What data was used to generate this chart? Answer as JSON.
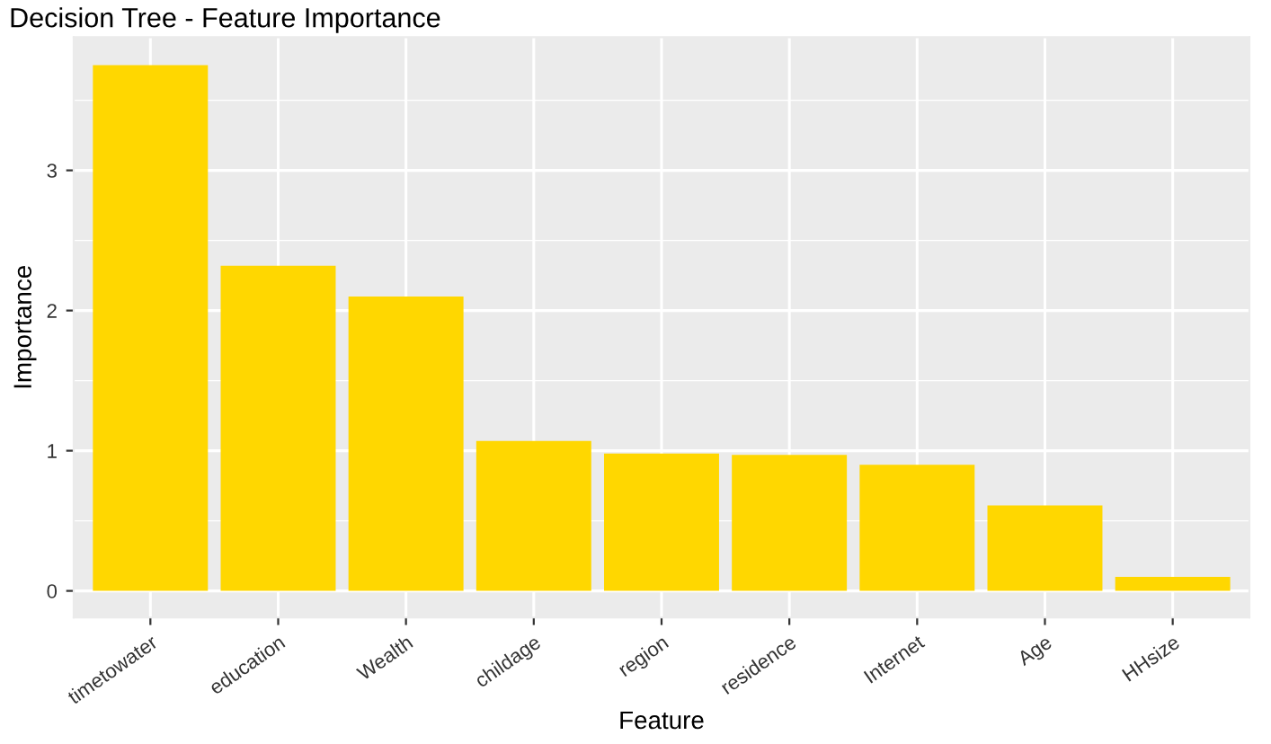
{
  "chart_data": {
    "type": "bar",
    "title": "Decision Tree - Feature Importance",
    "xlabel": "Feature",
    "ylabel": "Importance",
    "categories": [
      "timetowater",
      "education",
      "Wealth",
      "childage",
      "region",
      "residence",
      "Internet",
      "Age",
      "HHsize"
    ],
    "values": [
      3.75,
      2.32,
      2.1,
      1.07,
      0.98,
      0.97,
      0.9,
      0.61,
      0.1
    ],
    "color": "#ffd700",
    "ylim": [
      -0.19,
      3.95
    ],
    "yticks": [
      0,
      1,
      2,
      3
    ],
    "grid": true
  }
}
